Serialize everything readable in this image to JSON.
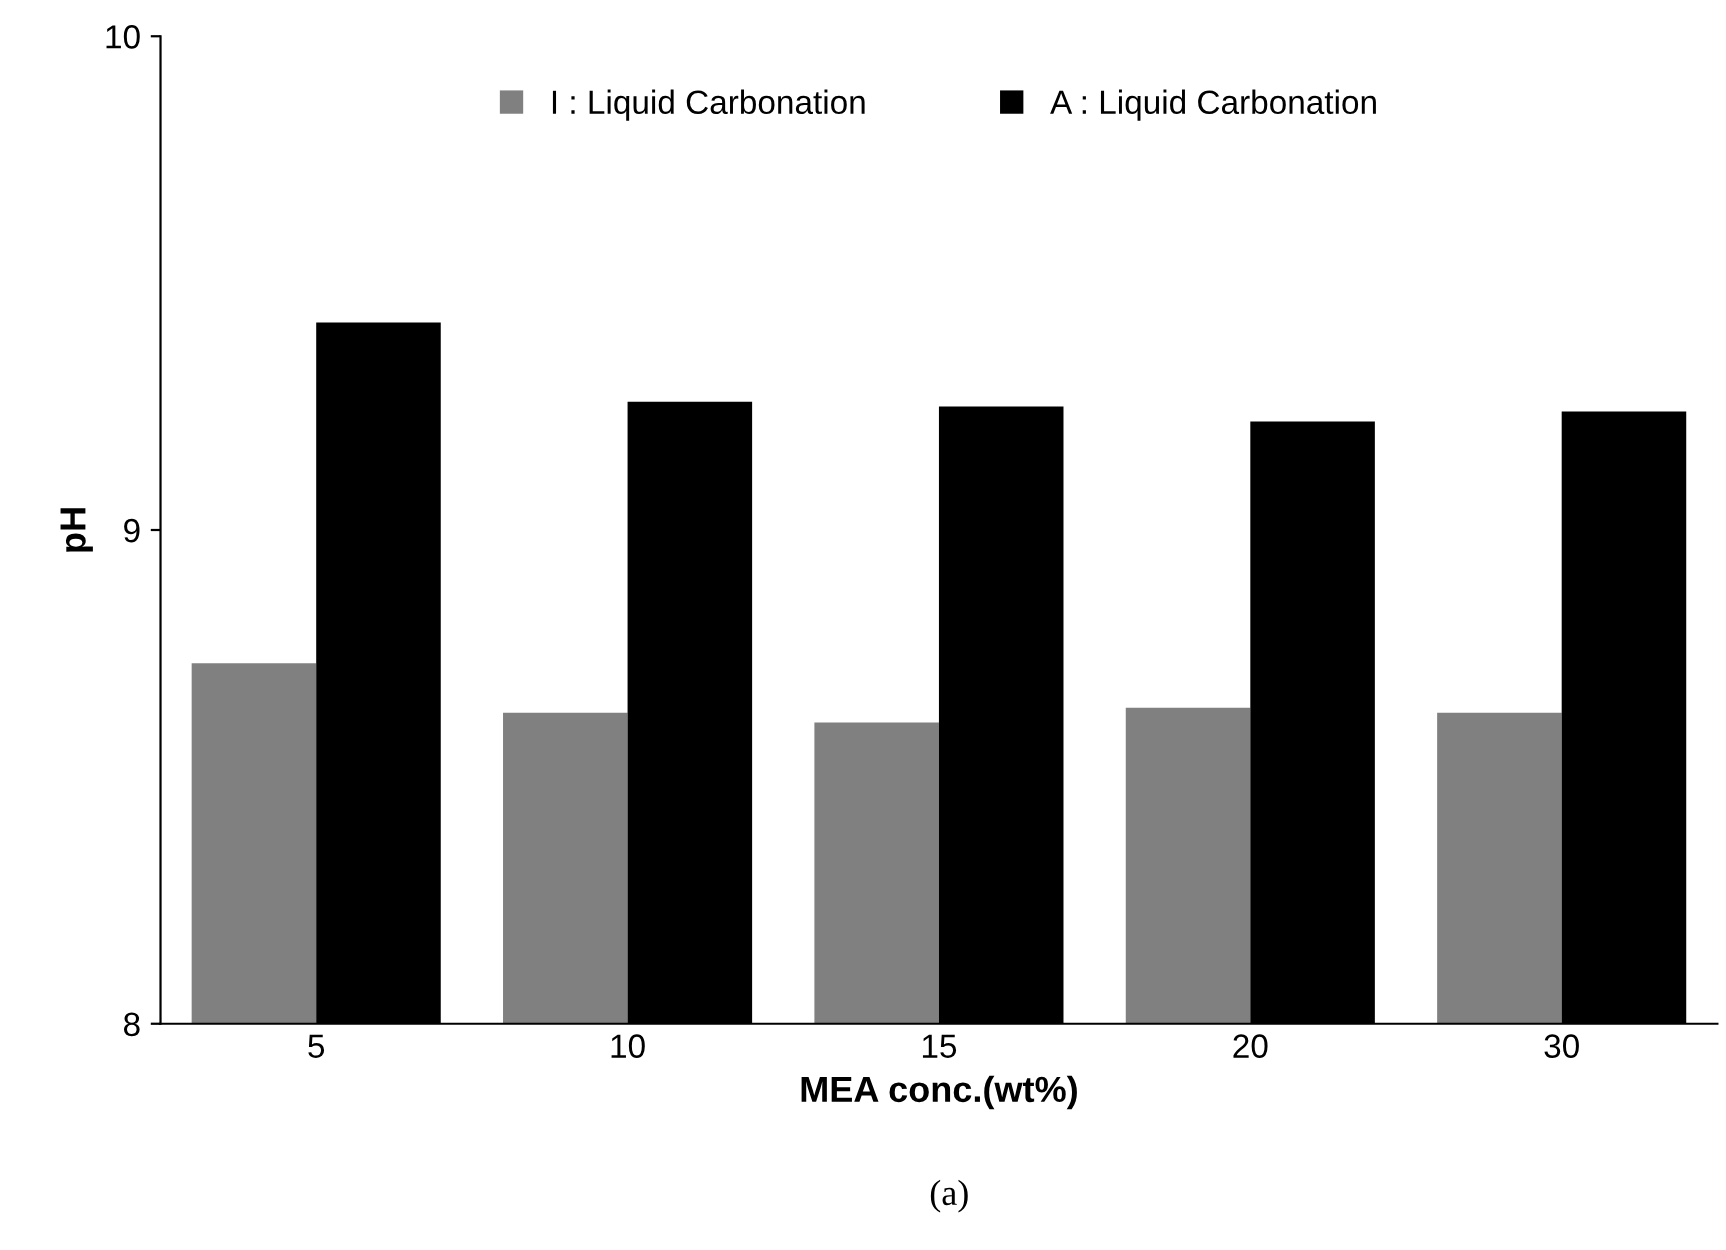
{
  "chart_data": {
    "type": "bar",
    "xlabel": "MEA conc.(wt%)",
    "ylabel": "pH",
    "categories": [
      "5",
      "10",
      "15",
      "20",
      "30"
    ],
    "series": [
      {
        "name": "I : Liquid Carbonation",
        "color": "#808080",
        "values": [
          8.73,
          8.63,
          8.61,
          8.64,
          8.63
        ]
      },
      {
        "name": "A : Liquid Carbonation",
        "color": "#000000",
        "values": [
          9.42,
          9.26,
          9.25,
          9.22,
          9.24
        ]
      }
    ],
    "ylim": [
      8,
      10
    ],
    "yticks": [
      8,
      9,
      10
    ],
    "grid": false,
    "legend": "top",
    "annotations": [
      "(a)"
    ]
  }
}
